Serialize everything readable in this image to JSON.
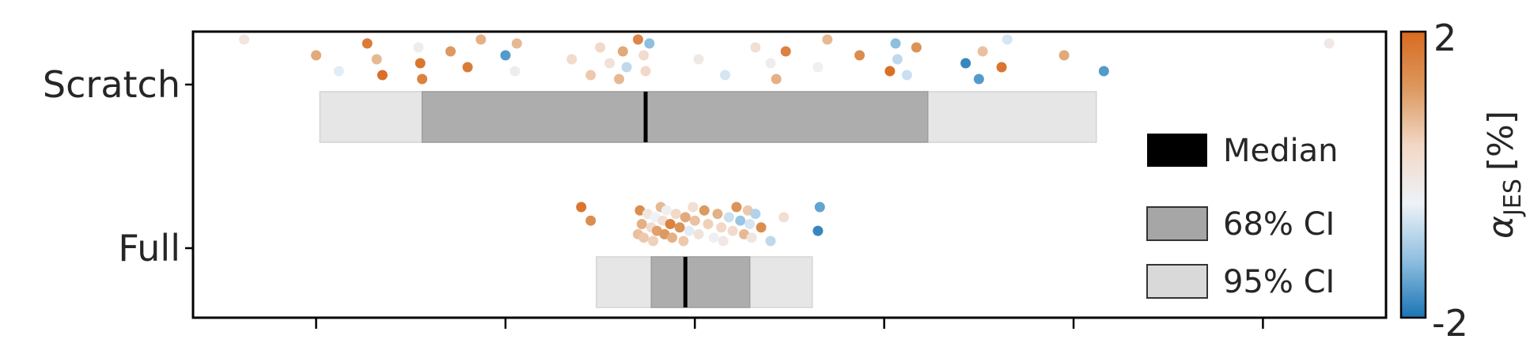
{
  "chart_data": {
    "type": "strip-box",
    "categories": [
      "Scratch",
      "Full"
    ],
    "xlabel": "",
    "ylabel": "",
    "xticks": [
      1,
      2,
      3,
      4,
      5,
      6
    ],
    "xlim": [
      0.35,
      6.65
    ],
    "legend": {
      "placement": "lower-right",
      "entries": [
        {
          "label": "Median",
          "color": "#000000"
        },
        {
          "label": "68% CI",
          "color": "#a6a6a6"
        },
        {
          "label": "95% CI",
          "color": "#d9d9d9"
        }
      ]
    },
    "colorbar": {
      "label": "α",
      "label_sub": "JES",
      "label_unit": "[%]",
      "min": -2,
      "max": 2,
      "min_label": "-2",
      "max_label": "2",
      "colors": [
        "#1a74b4",
        "#8fbfe0",
        "#eef2f8",
        "#f2d8c6",
        "#dc9960",
        "#d96a1f"
      ]
    },
    "series": [
      {
        "category": "Scratch",
        "median": 2.74,
        "ci68": [
          1.56,
          4.23
        ],
        "ci95": [
          1.02,
          5.12
        ],
        "points": [
          [
            0.62,
            0.0
          ],
          [
            1.0,
            1.0
          ],
          [
            1.12,
            -0.5
          ],
          [
            1.27,
            1.7
          ],
          [
            1.32,
            0.8
          ],
          [
            1.35,
            1.9
          ],
          [
            1.54,
            -0.2
          ],
          [
            1.55,
            1.8
          ],
          [
            1.56,
            1.6
          ],
          [
            1.71,
            1.2
          ],
          [
            1.8,
            1.7
          ],
          [
            1.87,
            0.9
          ],
          [
            2.0,
            -1.6
          ],
          [
            2.05,
            -0.2
          ],
          [
            2.06,
            0.8
          ],
          [
            2.35,
            0.3
          ],
          [
            2.45,
            0.6
          ],
          [
            2.5,
            0.4
          ],
          [
            2.55,
            0.1
          ],
          [
            2.6,
            0.8
          ],
          [
            2.62,
            1.0
          ],
          [
            2.64,
            -0.8
          ],
          [
            2.7,
            1.5
          ],
          [
            2.73,
            0.3
          ],
          [
            2.74,
            0.4
          ],
          [
            2.76,
            -1.2
          ],
          [
            3.02,
            -0.1
          ],
          [
            3.16,
            -0.6
          ],
          [
            3.32,
            0.2
          ],
          [
            3.4,
            -0.2
          ],
          [
            3.43,
            0.9
          ],
          [
            3.48,
            1.6
          ],
          [
            3.65,
            -0.3
          ],
          [
            3.7,
            0.8
          ],
          [
            3.87,
            1.4
          ],
          [
            4.03,
            1.9
          ],
          [
            4.06,
            -1.2
          ],
          [
            4.07,
            -0.8
          ],
          [
            4.12,
            -0.7
          ],
          [
            4.17,
            1.3
          ],
          [
            4.43,
            -1.8
          ],
          [
            4.5,
            -1.6
          ],
          [
            4.52,
            0.7
          ],
          [
            4.62,
            1.8
          ],
          [
            4.65,
            -0.6
          ],
          [
            4.95,
            1.0
          ],
          [
            5.16,
            -1.6
          ],
          [
            6.35,
            -0.1
          ]
        ]
      },
      {
        "category": "Full",
        "median": 2.95,
        "ci68": [
          2.77,
          3.29
        ],
        "ci95": [
          2.48,
          3.62
        ],
        "points": [
          [
            2.4,
            1.8
          ],
          [
            2.45,
            1.4
          ],
          [
            2.7,
            0.7
          ],
          [
            2.71,
            1.4
          ],
          [
            2.72,
            0.9
          ],
          [
            2.73,
            0.6
          ],
          [
            2.75,
            0.0
          ],
          [
            2.77,
            0.3
          ],
          [
            2.78,
            0.5
          ],
          [
            2.79,
            -0.4
          ],
          [
            2.8,
            1.1
          ],
          [
            2.82,
            0.8
          ],
          [
            2.83,
            0.2
          ],
          [
            2.84,
            1.2
          ],
          [
            2.85,
            -0.3
          ],
          [
            2.87,
            1.6
          ],
          [
            2.88,
            0.9
          ],
          [
            2.9,
            0.4
          ],
          [
            2.92,
            1.3
          ],
          [
            2.94,
            0.6
          ],
          [
            2.95,
            1.0
          ],
          [
            2.97,
            -0.5
          ],
          [
            2.99,
            0.2
          ],
          [
            3.0,
            0.7
          ],
          [
            3.02,
            0.1
          ],
          [
            3.05,
            1.2
          ],
          [
            3.07,
            0.5
          ],
          [
            3.1,
            -0.3
          ],
          [
            3.12,
            0.9
          ],
          [
            3.14,
            0.4
          ],
          [
            3.15,
            -0.1
          ],
          [
            3.18,
            -0.7
          ],
          [
            3.2,
            0.3
          ],
          [
            3.22,
            1.3
          ],
          [
            3.24,
            -1.1
          ],
          [
            3.26,
            0.8
          ],
          [
            3.28,
            0.6
          ],
          [
            3.29,
            -0.6
          ],
          [
            3.3,
            0.0
          ],
          [
            3.32,
            -0.9
          ],
          [
            3.35,
            1.4
          ],
          [
            3.4,
            -0.8
          ],
          [
            3.47,
            0.2
          ],
          [
            3.65,
            -1.8
          ],
          [
            3.66,
            -1.5
          ]
        ]
      }
    ]
  }
}
